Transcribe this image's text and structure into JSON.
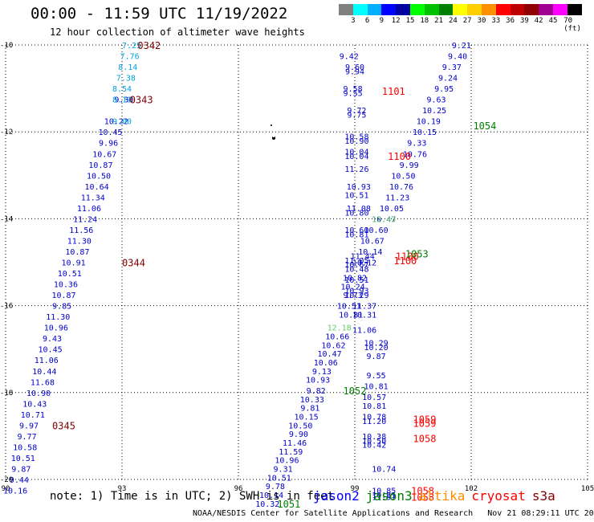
{
  "header": {
    "title": "00:00 - 11:59 UTC 11/19/2022",
    "subtitle": "12 hour collection of altimeter wave heights"
  },
  "colorbar": {
    "colors": [
      "#808080",
      "#00ffff",
      "#00b0ff",
      "#0000ff",
      "#0000a0",
      "#00ff00",
      "#00c000",
      "#008000",
      "#ffff00",
      "#ffd000",
      "#ff9000",
      "#ff0000",
      "#c00000",
      "#900000",
      "#a00090",
      "#ff00ff",
      "#000000"
    ],
    "labels": [
      "3",
      "6",
      "9",
      "12",
      "15",
      "18",
      "21",
      "24",
      "27",
      "30",
      "33",
      "36",
      "39",
      "42",
      "45",
      "70 (ft)"
    ]
  },
  "axes": {
    "lat_labels": [
      "-10",
      "-12",
      "-14",
      "-16",
      "-18",
      "-20"
    ],
    "lon_labels": [
      "90",
      "93",
      "96",
      "99",
      "102",
      "105"
    ]
  },
  "tracks": [
    {
      "color": "#0000cc",
      "labels": [
        {
          "lon": 93.05,
          "lat": -11.25,
          "v": "9.30"
        },
        {
          "lon": 92.85,
          "lat": -11.75,
          "v": "10.22"
        },
        {
          "lon": 92.7,
          "lat": -12.0,
          "v": "10.45"
        },
        {
          "lon": 92.65,
          "lat": -12.25,
          "v": "9.96"
        },
        {
          "lon": 92.55,
          "lat": -12.5,
          "v": "10.67"
        },
        {
          "lon": 92.45,
          "lat": -12.75,
          "v": "10.87"
        },
        {
          "lon": 92.4,
          "lat": -13.0,
          "v": "10.50"
        },
        {
          "lon": 92.35,
          "lat": -13.25,
          "v": "10.64"
        },
        {
          "lon": 92.25,
          "lat": -13.5,
          "v": "11.34"
        },
        {
          "lon": 92.15,
          "lat": -13.75,
          "v": "11.06"
        },
        {
          "lon": 92.05,
          "lat": -14.0,
          "v": "11.24"
        },
        {
          "lon": 91.95,
          "lat": -14.25,
          "v": "11.56"
        },
        {
          "lon": 91.9,
          "lat": -14.5,
          "v": "11.30"
        },
        {
          "lon": 91.85,
          "lat": -14.75,
          "v": "10.87"
        },
        {
          "lon": 91.75,
          "lat": -15.0,
          "v": "10.91"
        },
        {
          "lon": 91.65,
          "lat": -15.25,
          "v": "10.51"
        },
        {
          "lon": 91.55,
          "lat": -15.5,
          "v": "10.36"
        },
        {
          "lon": 91.5,
          "lat": -15.75,
          "v": "10.87"
        },
        {
          "lon": 91.45,
          "lat": -16.0,
          "v": "9.85"
        },
        {
          "lon": 91.35,
          "lat": -16.25,
          "v": "11.30"
        },
        {
          "lon": 91.3,
          "lat": -16.5,
          "v": "10.96"
        },
        {
          "lon": 91.2,
          "lat": -16.75,
          "v": "9.43"
        },
        {
          "lon": 91.15,
          "lat": -17.0,
          "v": "10.45"
        },
        {
          "lon": 91.05,
          "lat": -17.25,
          "v": "11.06"
        },
        {
          "lon": 91.0,
          "lat": -17.5,
          "v": "10.44"
        },
        {
          "lon": 90.95,
          "lat": -17.75,
          "v": "11.68"
        },
        {
          "lon": 90.85,
          "lat": -18.0,
          "v": "10.90"
        },
        {
          "lon": 90.75,
          "lat": -18.25,
          "v": "10.43"
        },
        {
          "lon": 90.7,
          "lat": -18.5,
          "v": "10.71"
        },
        {
          "lon": 90.6,
          "lat": -18.75,
          "v": "9.97"
        },
        {
          "lon": 90.55,
          "lat": -19.0,
          "v": "9.77"
        },
        {
          "lon": 90.5,
          "lat": -19.25,
          "v": "10.58"
        },
        {
          "lon": 90.45,
          "lat": -19.5,
          "v": "10.51"
        },
        {
          "lon": 90.4,
          "lat": -19.75,
          "v": "9.87"
        },
        {
          "lon": 90.35,
          "lat": -20.0,
          "v": "9.44"
        },
        {
          "lon": 90.25,
          "lat": -20.25,
          "v": "10.16"
        }
      ]
    },
    {
      "color": "#00a0e0",
      "labels": [
        {
          "lon": 93.25,
          "lat": -10.0,
          "v": "7.25"
        },
        {
          "lon": 93.2,
          "lat": -10.25,
          "v": "7.76"
        },
        {
          "lon": 93.15,
          "lat": -10.5,
          "v": "8.14"
        },
        {
          "lon": 93.1,
          "lat": -10.75,
          "v": "7.38"
        },
        {
          "lon": 93.0,
          "lat": -11.0,
          "v": "8.54"
        },
        {
          "lon": 93.0,
          "lat": -11.25,
          "v": "8.19"
        },
        {
          "lon": 93.0,
          "lat": -11.75,
          "v": "9.00"
        }
      ]
    },
    {
      "color": "#0000cc",
      "labels": [
        {
          "lon": 98.85,
          "lat": -10.25,
          "v": "9.42"
        },
        {
          "lon": 99.0,
          "lat": -10.5,
          "v": "9.60"
        },
        {
          "lon": 99.0,
          "lat": -10.6,
          "v": "9.94"
        },
        {
          "lon": 98.95,
          "lat": -11.0,
          "v": "9.58"
        },
        {
          "lon": 98.95,
          "lat": -11.1,
          "v": "9.55"
        },
        {
          "lon": 99.05,
          "lat": -11.5,
          "v": "9.72"
        },
        {
          "lon": 99.05,
          "lat": -11.6,
          "v": "9.75"
        },
        {
          "lon": 99.05,
          "lat": -12.1,
          "v": "10.58"
        },
        {
          "lon": 99.05,
          "lat": -12.2,
          "v": "10.90"
        },
        {
          "lon": 99.05,
          "lat": -12.45,
          "v": "10.04"
        },
        {
          "lon": 99.05,
          "lat": -12.55,
          "v": "10.04"
        },
        {
          "lon": 99.05,
          "lat": -12.85,
          "v": "11.26"
        },
        {
          "lon": 99.1,
          "lat": -13.25,
          "v": "10.93"
        },
        {
          "lon": 99.05,
          "lat": -13.45,
          "v": "10.51"
        },
        {
          "lon": 99.1,
          "lat": -13.75,
          "v": "11.08"
        },
        {
          "lon": 99.05,
          "lat": -13.85,
          "v": "10.80"
        },
        {
          "lon": 99.05,
          "lat": -14.25,
          "v": "10.60"
        },
        {
          "lon": 99.05,
          "lat": -14.35,
          "v": "10.81"
        },
        {
          "lon": 99.2,
          "lat": -14.85,
          "v": "11.44"
        },
        {
          "lon": 99.05,
          "lat": -14.95,
          "v": "11.05"
        },
        {
          "lon": 99.05,
          "lat": -15.05,
          "v": "10.67"
        },
        {
          "lon": 99.05,
          "lat": -15.15,
          "v": "10.48"
        },
        {
          "lon": 99.0,
          "lat": -15.35,
          "v": "10.82"
        },
        {
          "lon": 99.05,
          "lat": -15.4,
          "v": "10.51"
        },
        {
          "lon": 98.95,
          "lat": -15.55,
          "v": "10.24"
        },
        {
          "lon": 99.05,
          "lat": -15.65,
          "v": "10.93"
        },
        {
          "lon": 98.95,
          "lat": -15.75,
          "v": "9.73"
        },
        {
          "lon": 99.05,
          "lat": -15.75,
          "v": "10.29"
        },
        {
          "lon": 98.85,
          "lat": -16.0,
          "v": "10.51"
        },
        {
          "lon": 98.9,
          "lat": -16.2,
          "v": "10.81"
        },
        {
          "lon": 99.25,
          "lat": -16.0,
          "v": "11.37"
        },
        {
          "lon": 99.25,
          "lat": -16.2,
          "v": "10.31"
        },
        {
          "lon": 99.25,
          "lat": -16.55,
          "v": "11.06"
        },
        {
          "lon": 98.55,
          "lat": -16.7,
          "v": "10.66"
        },
        {
          "lon": 98.45,
          "lat": -16.9,
          "v": "10.62"
        },
        {
          "lon": 98.35,
          "lat": -17.1,
          "v": "10.47"
        },
        {
          "lon": 98.25,
          "lat": -17.3,
          "v": "10.06"
        },
        {
          "lon": 98.15,
          "lat": -17.5,
          "v": "9.13"
        },
        {
          "lon": 98.05,
          "lat": -17.7,
          "v": "10.93"
        },
        {
          "lon": 98.0,
          "lat": -17.95,
          "v": "9.82"
        },
        {
          "lon": 97.9,
          "lat": -18.15,
          "v": "10.33"
        },
        {
          "lon": 97.85,
          "lat": -18.35,
          "v": "9.81"
        },
        {
          "lon": 97.75,
          "lat": -18.55,
          "v": "10.15"
        },
        {
          "lon": 97.6,
          "lat": -18.75,
          "v": "10.50"
        },
        {
          "lon": 97.55,
          "lat": -18.95,
          "v": "9.90"
        },
        {
          "lon": 97.45,
          "lat": -19.15,
          "v": "11.46"
        },
        {
          "lon": 97.35,
          "lat": -19.35,
          "v": "11.59"
        },
        {
          "lon": 97.25,
          "lat": -19.55,
          "v": "10.96"
        },
        {
          "lon": 97.15,
          "lat": -19.75,
          "v": "9.31"
        },
        {
          "lon": 97.05,
          "lat": -19.95,
          "v": "10.51"
        },
        {
          "lon": 96.95,
          "lat": -20.15,
          "v": "9.78"
        },
        {
          "lon": 96.85,
          "lat": -20.35,
          "v": "10.14"
        },
        {
          "lon": 96.75,
          "lat": -20.55,
          "v": "10.32"
        },
        {
          "lon": 99.55,
          "lat": -16.85,
          "v": "10.29"
        },
        {
          "lon": 99.55,
          "lat": -16.95,
          "v": "10.20"
        },
        {
          "lon": 99.55,
          "lat": -17.15,
          "v": "9.87"
        },
        {
          "lon": 99.55,
          "lat": -17.6,
          "v": "9.55"
        },
        {
          "lon": 99.55,
          "lat": -17.85,
          "v": "10.81"
        },
        {
          "lon": 99.5,
          "lat": -18.1,
          "v": "10.57"
        },
        {
          "lon": 99.5,
          "lat": -18.3,
          "v": "10.81"
        },
        {
          "lon": 99.5,
          "lat": -18.55,
          "v": "10.78"
        },
        {
          "lon": 99.5,
          "lat": -18.65,
          "v": "11.20"
        },
        {
          "lon": 99.5,
          "lat": -19.0,
          "v": "10.38"
        },
        {
          "lon": 99.5,
          "lat": -19.1,
          "v": "10.50"
        },
        {
          "lon": 99.5,
          "lat": -19.2,
          "v": "10.42"
        },
        {
          "lon": 99.75,
          "lat": -19.75,
          "v": "10.74"
        },
        {
          "lon": 99.75,
          "lat": -20.25,
          "v": "10.85"
        },
        {
          "lon": 99.75,
          "lat": -20.35,
          "v": "10.81"
        },
        {
          "lon": 99.75,
          "lat": -20.4,
          "v": "11.57"
        },
        {
          "lon": 101.75,
          "lat": -10.0,
          "v": "9.21"
        },
        {
          "lon": 101.65,
          "lat": -10.25,
          "v": "9.40"
        },
        {
          "lon": 101.5,
          "lat": -10.5,
          "v": "9.37"
        },
        {
          "lon": 101.4,
          "lat": -10.75,
          "v": "9.24"
        },
        {
          "lon": 101.3,
          "lat": -11.0,
          "v": "9.95"
        },
        {
          "lon": 101.1,
          "lat": -11.25,
          "v": "9.63"
        },
        {
          "lon": 101.05,
          "lat": -11.5,
          "v": "10.25"
        },
        {
          "lon": 100.9,
          "lat": -11.75,
          "v": "10.19"
        },
        {
          "lon": 100.8,
          "lat": -12.0,
          "v": "10.15"
        },
        {
          "lon": 100.6,
          "lat": -12.25,
          "v": "9.33"
        },
        {
          "lon": 100.55,
          "lat": -12.5,
          "v": "10.76"
        },
        {
          "lon": 100.4,
          "lat": -12.75,
          "v": "9.99"
        },
        {
          "lon": 100.25,
          "lat": -13.0,
          "v": "10.50"
        },
        {
          "lon": 100.2,
          "lat": -13.25,
          "v": "10.76"
        },
        {
          "lon": 100.1,
          "lat": -13.5,
          "v": "11.23"
        },
        {
          "lon": 99.95,
          "lat": -13.75,
          "v": "10.05"
        },
        {
          "lon": 99.75,
          "lat": -14.0,
          "v": "10.47"
        },
        {
          "lon": 99.55,
          "lat": -14.25,
          "v": "10.60"
        },
        {
          "lon": 99.45,
          "lat": -14.5,
          "v": "10.67"
        },
        {
          "lon": 99.4,
          "lat": -14.75,
          "v": "10.14"
        },
        {
          "lon": 99.25,
          "lat": -15.0,
          "v": "10.12"
        }
      ]
    },
    {
      "color": "#66cc66",
      "labels": [
        {
          "lon": 99.75,
          "lat": -14.0,
          "v": "12.43"
        },
        {
          "lon": 98.6,
          "lat": -16.5,
          "v": "12.18"
        }
      ]
    }
  ],
  "time_labels": [
    {
      "lon": 93.7,
      "lat": -10.0,
      "t": "0342",
      "color": "#800000"
    },
    {
      "lon": 93.5,
      "lat": -11.25,
      "t": "0343",
      "color": "#800000"
    },
    {
      "lon": 93.3,
      "lat": -15.0,
      "t": "0344",
      "color": "#800000"
    },
    {
      "lon": 91.5,
      "lat": -18.75,
      "t": "0345",
      "color": "#800000"
    },
    {
      "lon": 100.0,
      "lat": -11.05,
      "t": "1101",
      "color": "#ff0000"
    },
    {
      "lon": 100.15,
      "lat": -12.55,
      "t": "1100",
      "color": "#ff0000"
    },
    {
      "lon": 100.35,
      "lat": -14.85,
      "t": "1100",
      "color": "#ff0000"
    },
    {
      "lon": 100.3,
      "lat": -14.95,
      "t": "1100",
      "color": "#ff0000"
    },
    {
      "lon": 100.8,
      "lat": -18.6,
      "t": "1059",
      "color": "#ff0000"
    },
    {
      "lon": 100.8,
      "lat": -18.7,
      "t": "1059",
      "color": "#ff0000"
    },
    {
      "lon": 100.8,
      "lat": -19.05,
      "t": "1058",
      "color": "#ff0000"
    },
    {
      "lon": 100.75,
      "lat": -20.25,
      "t": "1058",
      "color": "#ff0000"
    },
    {
      "lon": 100.75,
      "lat": -20.4,
      "t": "1058",
      "color": "#ff0000"
    },
    {
      "lon": 102.35,
      "lat": -11.85,
      "t": "1054",
      "color": "#008000"
    },
    {
      "lon": 100.6,
      "lat": -14.8,
      "t": "1053",
      "color": "#008000"
    },
    {
      "lon": 99.0,
      "lat": -17.95,
      "t": "1052",
      "color": "#008000"
    },
    {
      "lon": 97.3,
      "lat": -20.55,
      "t": "1051",
      "color": "#008000"
    }
  ],
  "footnote": "note: 1) Time is in UTC; 2) SWH is in feet",
  "legend": [
    {
      "name": "jason2",
      "color": "#0000ff"
    },
    {
      "name": "jason3",
      "color": "#008000"
    },
    {
      "name": "altika",
      "color": "#ff8c00"
    },
    {
      "name": "cryosat",
      "color": "#ff0000"
    },
    {
      "name": "s3a",
      "color": "#800000"
    }
  ],
  "credit": "NOAA/NESDIS Center for Satellite Applications and Research   Nov 21 08:29:11 UTC 2022"
}
